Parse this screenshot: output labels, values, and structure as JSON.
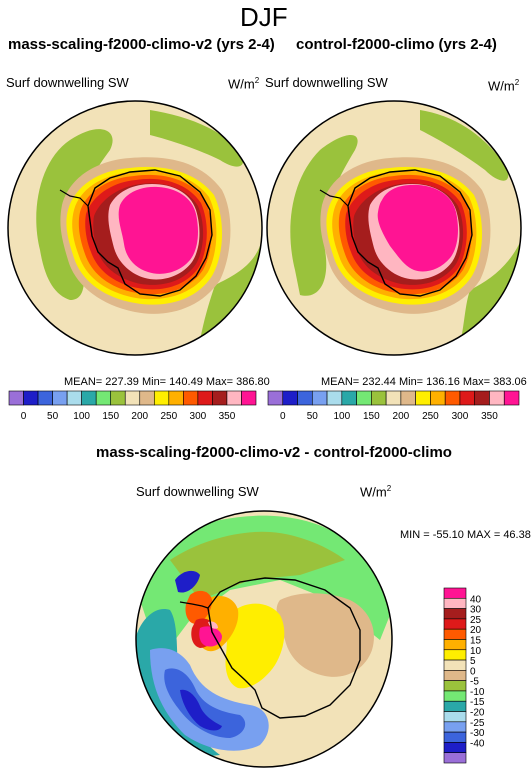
{
  "figure": {
    "title": "DJF"
  },
  "panels": [
    {
      "id": "mass-scaling",
      "title": "mass-scaling-f2000-climo-v2 (yrs 2-4)",
      "variable": "Surf downwelling SW",
      "units": "W/m",
      "units_sup": "2",
      "stats": "MEAN= 227.39  Min= 140.49  Max= 386.80"
    },
    {
      "id": "control",
      "title": "control-f2000-climo (yrs 2-4)",
      "variable": "Surf downwelling SW",
      "units": "W/m",
      "units_sup": "2",
      "stats": "MEAN= 232.44  Min= 136.16  Max= 383.06"
    }
  ],
  "top_colorbar": {
    "ticks": [
      "0",
      "50",
      "100",
      "150",
      "200",
      "250",
      "300",
      "350"
    ],
    "colors": [
      "#9a6fd8",
      "#1e1ec8",
      "#3c64dc",
      "#78a0f0",
      "#aadcec",
      "#2aa8a8",
      "#74e874",
      "#9ac23c",
      "#f2e2b8",
      "#dfb88a",
      "#ffee00",
      "#ffb000",
      "#ff5a00",
      "#de1a1a",
      "#a51d1d",
      "#ffb6c1",
      "#ff1493"
    ]
  },
  "diff_panel": {
    "title": "mass-scaling-f2000-climo-v2 - control-f2000-climo",
    "variable": "Surf downwelling SW",
    "units": "W/m",
    "units_sup": "2",
    "stats": "MIN = -55.10 MAX =  46.38",
    "colorbar": {
      "ticks": [
        "40",
        "30",
        "25",
        "20",
        "15",
        "10",
        "5",
        "0",
        "-5",
        "-10",
        "-15",
        "-20",
        "-25",
        "-30",
        "-40"
      ],
      "colors": [
        "#ff1493",
        "#ffb6c1",
        "#a51d1d",
        "#de1a1a",
        "#ff5a00",
        "#ffb000",
        "#ffee00",
        "#f2e2b8",
        "#dfb88a",
        "#9ac23c",
        "#74e874",
        "#2aa8a8",
        "#aadcec",
        "#78a0f0",
        "#3c64dc",
        "#1e1ec8",
        "#9a6fd8"
      ]
    }
  }
}
